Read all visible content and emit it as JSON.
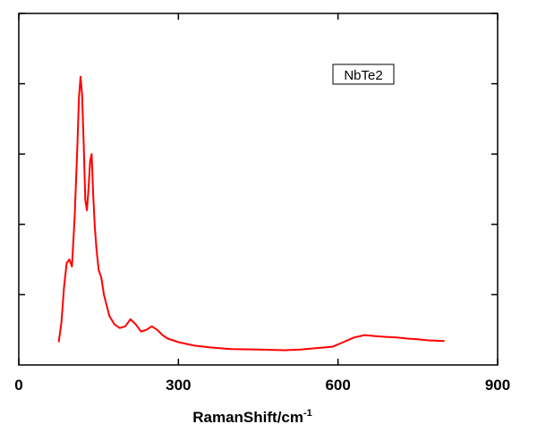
{
  "chart_data": {
    "type": "line",
    "title": "",
    "xlabel": "RamanShift/cm",
    "xlabel_superscript": "-1",
    "ylabel": "",
    "xlim": [
      0,
      900
    ],
    "ylim": [
      0,
      1
    ],
    "x_ticks": [
      0,
      300,
      600,
      900
    ],
    "x_tick_labels": [
      "0",
      "300",
      "600",
      "900"
    ],
    "y_ticks": [
      0.2,
      0.4,
      0.6,
      0.8,
      1.0
    ],
    "y_tick_labels_visible": false,
    "grid": false,
    "legend": {
      "entries": [
        "NbTe2"
      ],
      "placement": "top-right"
    },
    "series": [
      {
        "name": "NbTe2",
        "color": "#ff0000",
        "x": [
          75,
          80,
          85,
          90,
          95,
          100,
          105,
          110,
          113,
          116,
          119,
          122,
          125,
          128,
          131,
          134,
          137,
          140,
          143,
          146,
          150,
          155,
          160,
          170,
          180,
          190,
          200,
          210,
          220,
          230,
          240,
          250,
          260,
          270,
          280,
          300,
          330,
          360,
          400,
          450,
          500,
          530,
          560,
          590,
          610,
          630,
          650,
          670,
          690,
          710,
          730,
          750,
          770,
          800
        ],
        "y": [
          0.065,
          0.12,
          0.22,
          0.29,
          0.3,
          0.28,
          0.42,
          0.62,
          0.76,
          0.82,
          0.77,
          0.63,
          0.47,
          0.44,
          0.5,
          0.58,
          0.6,
          0.48,
          0.39,
          0.33,
          0.27,
          0.25,
          0.2,
          0.14,
          0.115,
          0.105,
          0.11,
          0.13,
          0.115,
          0.095,
          0.1,
          0.11,
          0.1,
          0.085,
          0.075,
          0.065,
          0.055,
          0.05,
          0.045,
          0.044,
          0.042,
          0.044,
          0.048,
          0.052,
          0.065,
          0.078,
          0.085,
          0.082,
          0.08,
          0.078,
          0.075,
          0.073,
          0.07,
          0.068
        ]
      }
    ]
  }
}
